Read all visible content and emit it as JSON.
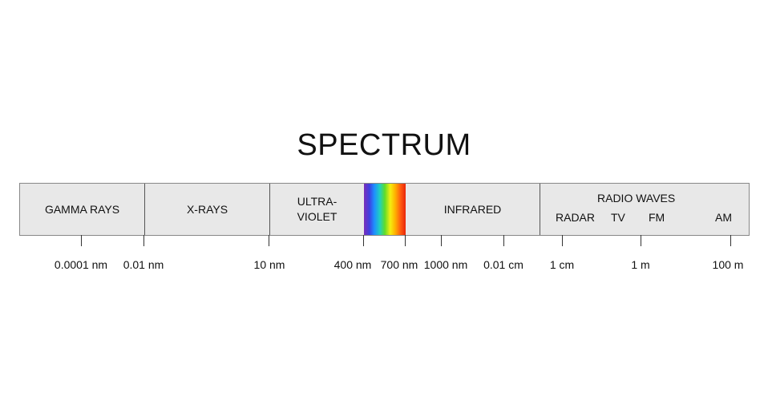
{
  "title": "SPECTRUM",
  "bands": {
    "gamma": "GAMMA RAYS",
    "xray": "X-RAYS",
    "uv_line1": "ULTRA-",
    "uv_line2": "VIOLET",
    "infrared": "INFRARED",
    "radio": "RADIO WAVES",
    "radar": "RADAR",
    "tv": "TV",
    "fm": "FM",
    "am": "AM"
  },
  "visible_gradient": [
    "#7a2fb8",
    "#3f3fe0",
    "#1e90ff",
    "#20d0c0",
    "#5fdc2a",
    "#f4ee10",
    "#ffb000",
    "#ff5a10",
    "#e8260a"
  ],
  "scale_labels": [
    "0.0001 nm",
    "0.01 nm",
    "10 nm",
    "400 nm",
    "700 nm",
    "1000 nm",
    "0.01 cm",
    "1 cm",
    "1 m",
    "100 m"
  ]
}
